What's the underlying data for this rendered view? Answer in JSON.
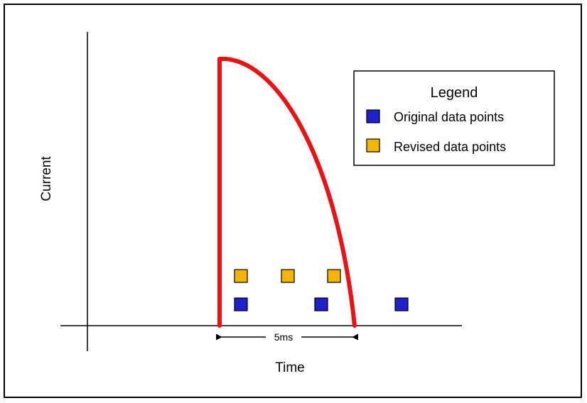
{
  "diagram": {
    "y_axis_label": "Current",
    "x_axis_label": "Time",
    "interval_label": "5ms",
    "legend": {
      "title": "Legend",
      "items": [
        {
          "name": "Original data points",
          "color": "#1f1fcc"
        },
        {
          "name": "Revised data points",
          "color": "#f7b500"
        }
      ]
    },
    "pulse_color": "#ee1111",
    "original_point_count": 3,
    "revised_point_count": 3
  }
}
